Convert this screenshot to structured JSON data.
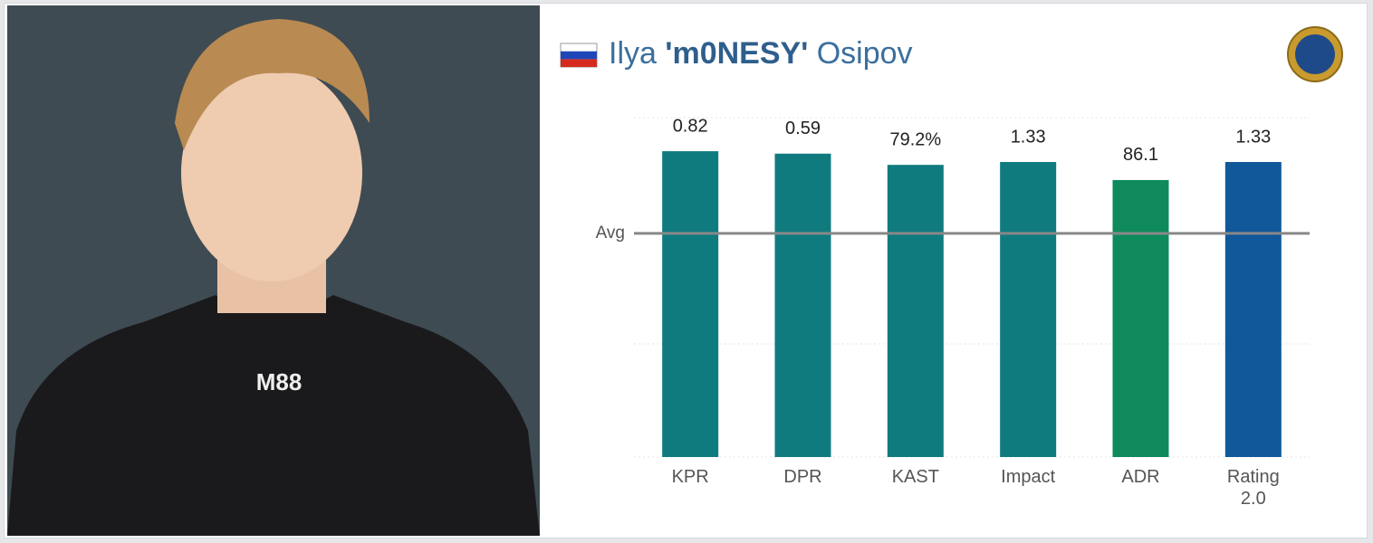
{
  "player": {
    "first_name": "Ilya",
    "nickname": "'m0NESY'",
    "last_name": "Osipov"
  },
  "chart_data": {
    "type": "bar",
    "categories": [
      "KPR",
      "DPR",
      "KAST",
      "Impact",
      "ADR",
      "Rating 2.0"
    ],
    "values": [
      0.82,
      0.59,
      79.2,
      1.33,
      86.1,
      1.33
    ],
    "value_labels": [
      "0.82",
      "0.59",
      "79.2%",
      "1.33",
      "86.1",
      "1.33"
    ],
    "ylims": [
      [
        0,
        0.91
      ],
      [
        0,
        0.66
      ],
      [
        0,
        92
      ],
      [
        0,
        1.53
      ],
      [
        0,
        105.5
      ],
      [
        0,
        1.53
      ]
    ],
    "colors": [
      "#107b7f",
      "#107b7f",
      "#107b7f",
      "#107b7f",
      "#0e8a5c",
      "#11589a"
    ],
    "reference_label": "Avg"
  }
}
